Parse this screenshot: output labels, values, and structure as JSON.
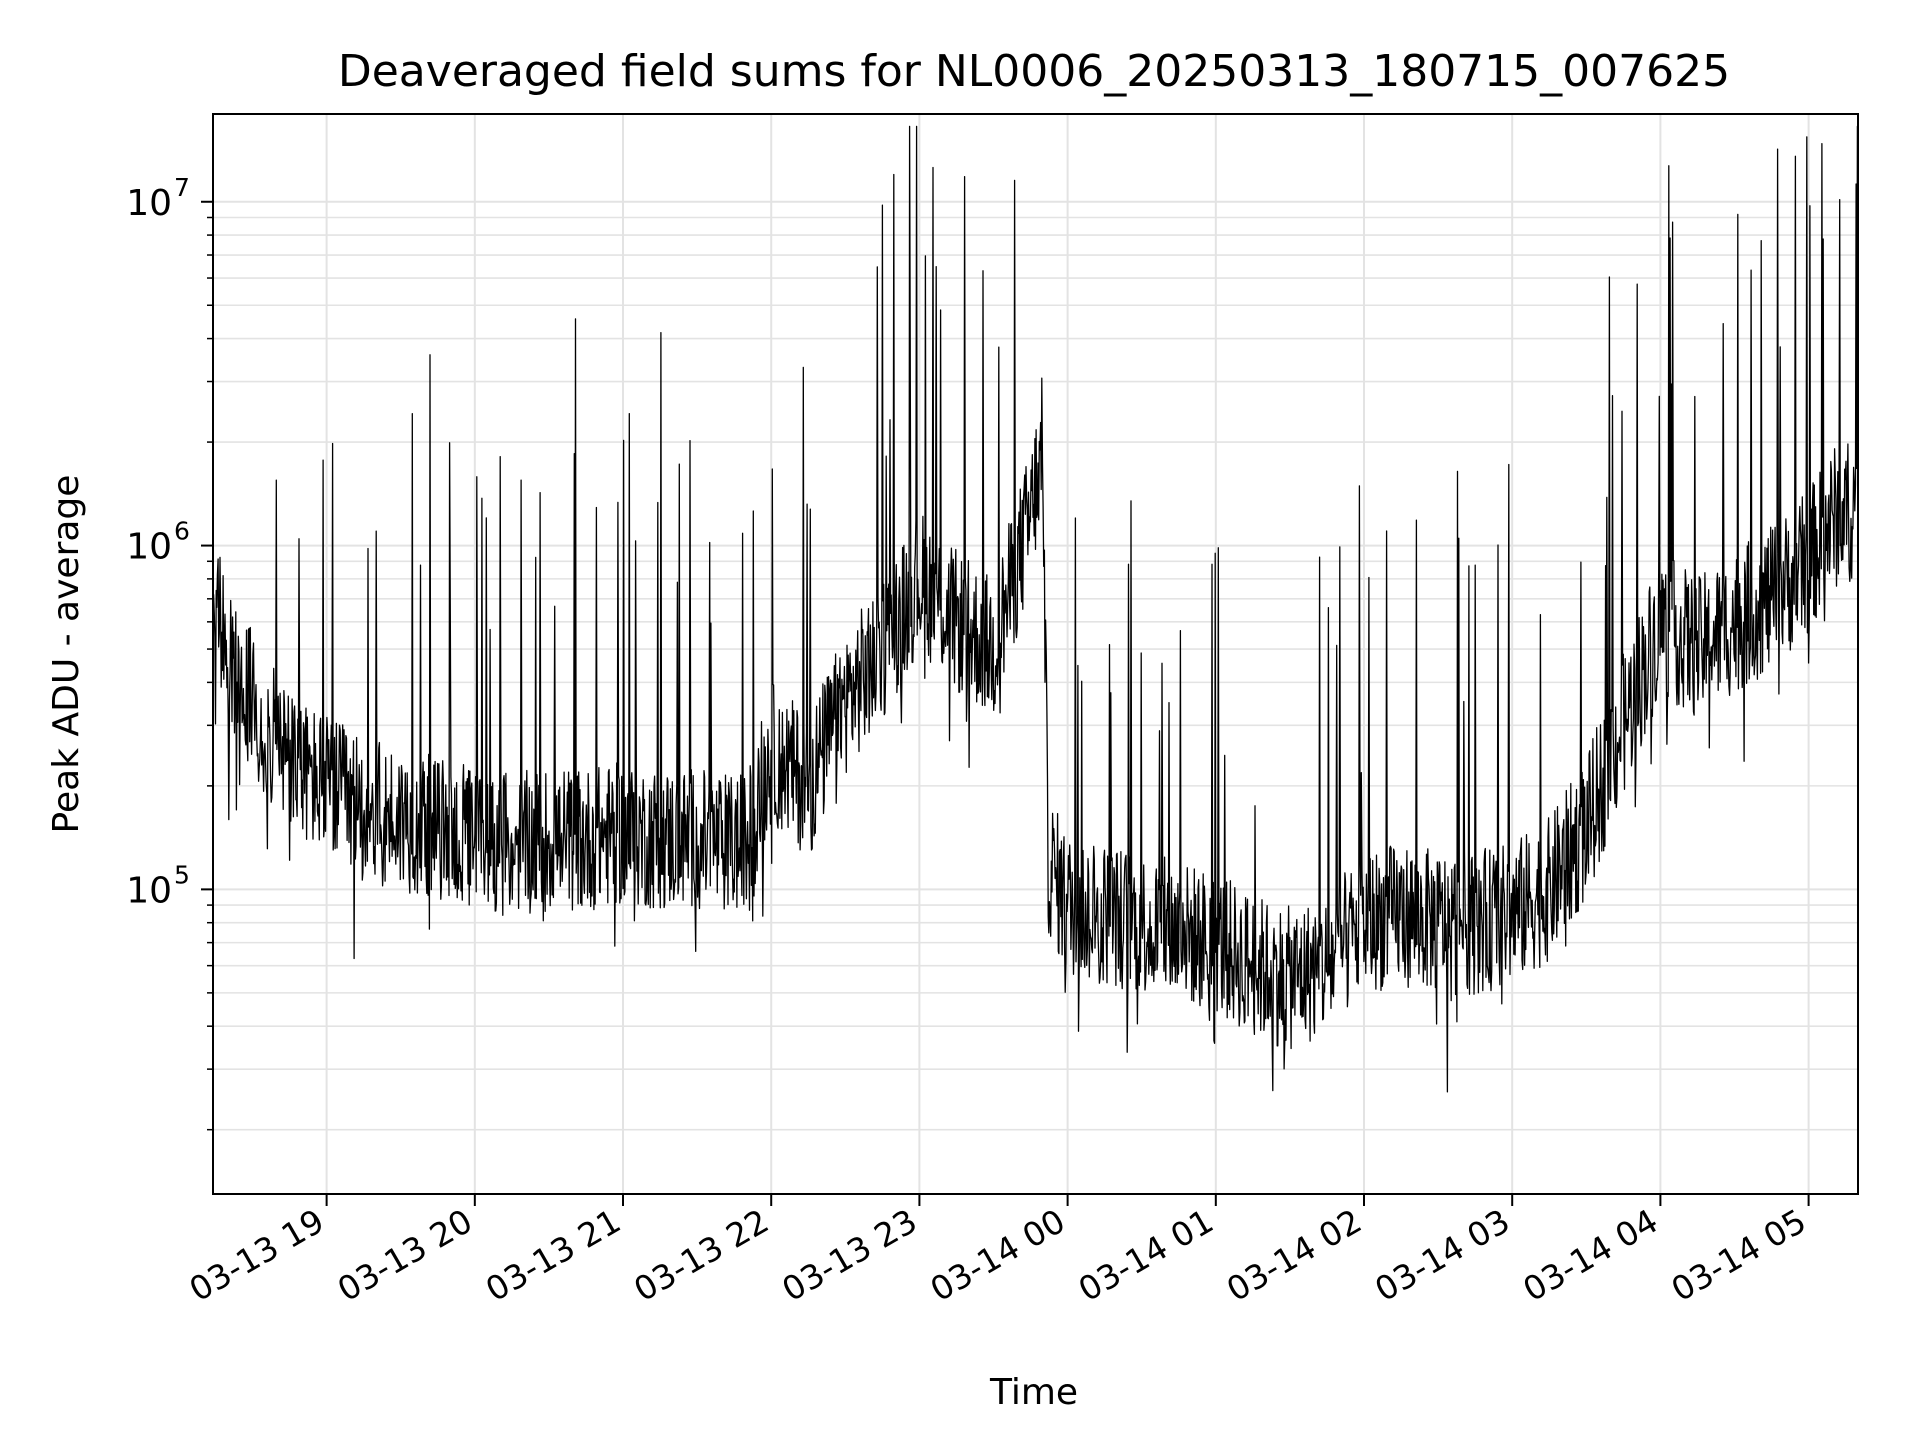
{
  "chart_data": {
    "type": "line",
    "title": "Deaveraged field sums for NL0006_20250313_180715_007625",
    "xlabel": "Time",
    "ylabel": "Peak ADU - average",
    "yscale": "log",
    "ylim": [
      13000,
      18000000
    ],
    "xlim": [
      "03-13 18:14",
      "03-14 05:20"
    ],
    "grid": true,
    "line_color": "#000000",
    "x_ticks": [
      "03-13 19",
      "03-13 20",
      "03-13 21",
      "03-13 22",
      "03-13 23",
      "03-14 00",
      "03-14 01",
      "03-14 02",
      "03-14 03",
      "03-14 04",
      "03-14 05"
    ],
    "y_ticks": [
      {
        "value": 100000,
        "base": "10",
        "exp": "5"
      },
      {
        "value": 1000000,
        "base": "10",
        "exp": "6"
      },
      {
        "value": 10000000,
        "base": "10",
        "exp": "7"
      }
    ],
    "series": [
      {
        "x": [
          "03-13 18:14",
          "03-13 18:20",
          "03-13 18:30",
          "03-13 18:40",
          "03-13 18:50",
          "03-13 19:00",
          "03-13 19:15",
          "03-13 19:30",
          "03-13 19:45",
          "03-13 20:00",
          "03-13 20:15",
          "03-13 20:30",
          "03-13 20:45",
          "03-13 21:00",
          "03-13 21:15",
          "03-13 21:30",
          "03-13 21:40",
          "03-13 21:50",
          "03-13 22:00",
          "03-13 22:15",
          "03-13 22:30",
          "03-13 22:45",
          "03-13 23:00",
          "03-13 23:15",
          "03-13 23:30",
          "03-13 23:45",
          "03-13 23:50",
          "03-13 23:52",
          "03-14 00:00",
          "03-14 00:15",
          "03-14 00:30",
          "03-14 00:45",
          "03-14 01:00",
          "03-14 01:15",
          "03-14 01:30",
          "03-14 01:45",
          "03-14 02:00",
          "03-14 02:15",
          "03-14 02:30",
          "03-14 02:45",
          "03-14 03:00",
          "03-14 03:15",
          "03-14 03:30",
          "03-14 03:45",
          "03-14 04:00",
          "03-14 04:15",
          "03-14 04:30",
          "03-14 04:45",
          "03-14 05:00",
          "03-14 05:10",
          "03-14 05:20"
        ],
        "values": [
          900000,
          450000,
          350000,
          260000,
          220000,
          200000,
          170000,
          160000,
          150000,
          140000,
          135000,
          140000,
          140000,
          145000,
          140000,
          140000,
          135000,
          135000,
          250000,
          200000,
          350000,
          500000,
          800000,
          600000,
          500000,
          1200000,
          2000000,
          120000,
          90000,
          85000,
          80000,
          75000,
          70000,
          60000,
          55000,
          60000,
          80000,
          85000,
          80000,
          80000,
          85000,
          100000,
          150000,
          300000,
          600000,
          500000,
          600000,
          700000,
          900000,
          1200000,
          1300000
        ]
      }
    ]
  }
}
